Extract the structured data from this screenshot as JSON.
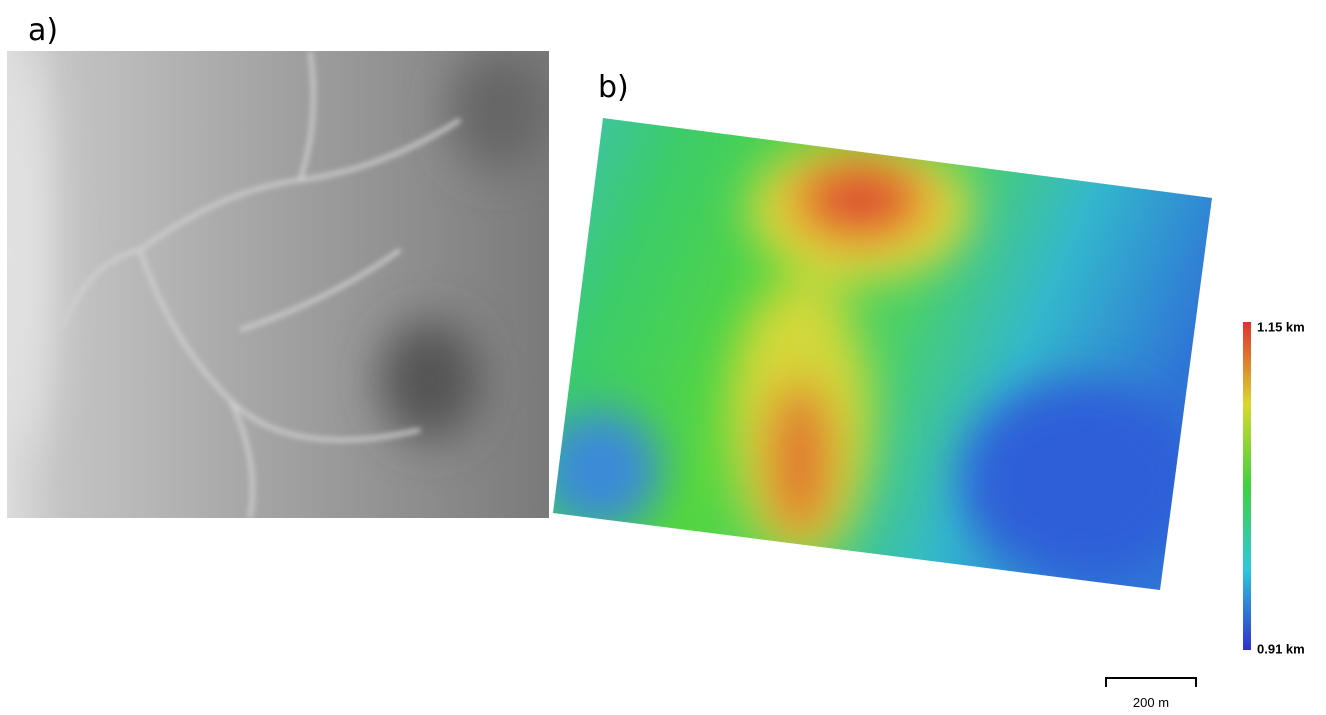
{
  "panels": [
    {
      "label": "a)"
    },
    {
      "label": "b)",
      "colorbar": {
        "max_label": "1.15 km",
        "min_label": "0.91 km"
      },
      "scale_bar": "200 m"
    }
  ]
}
